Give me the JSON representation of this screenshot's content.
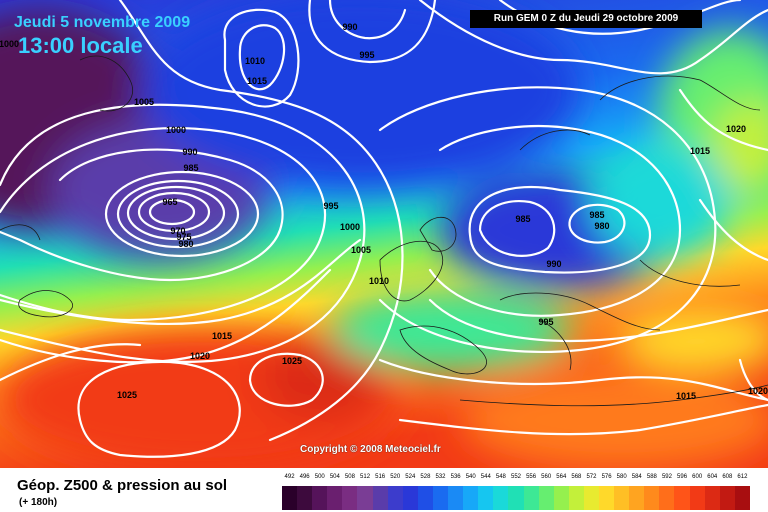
{
  "header": {
    "date": "Jeudi 5 novembre 2009",
    "time": "13:00 locale",
    "run": "Run GEM 0 Z du Jeudi 29 octobre 2009"
  },
  "map": {
    "copyright": "Copyright © 2008 Meteociel.fr",
    "pressure_labels": [
      "1000",
      "990",
      "995",
      "1010",
      "1015",
      "1005",
      "1000",
      "990",
      "985",
      "965",
      "970",
      "975",
      "980",
      "995",
      "1000",
      "1005",
      "1010",
      "985",
      "985",
      "980",
      "990",
      "995",
      "1020",
      "1015",
      "1015",
      "1020",
      "1025",
      "1025",
      "1015",
      "1020"
    ]
  },
  "footer": {
    "title": "Géop. Z500 & pression au sol",
    "subtitle": "(+ 180h)"
  },
  "scale": {
    "labels": [
      "492",
      "496",
      "500",
      "504",
      "508",
      "512",
      "516",
      "520",
      "524",
      "528",
      "532",
      "536",
      "540",
      "544",
      "548",
      "552",
      "556",
      "560",
      "564",
      "568",
      "572",
      "576",
      "580",
      "584",
      "588",
      "592",
      "596",
      "600",
      "604",
      "608",
      "612"
    ],
    "colors": [
      "#2a002a",
      "#3d0a3d",
      "#55135a",
      "#6a1f6f",
      "#7a2d82",
      "#7a3d95",
      "#5a3caa",
      "#3c3ccc",
      "#2a38d8",
      "#1f4fe6",
      "#1a6bf0",
      "#1a8af5",
      "#17a8f8",
      "#16c6f0",
      "#1ad9d9",
      "#20e0b5",
      "#3de895",
      "#66ee70",
      "#95f04e",
      "#c3f03a",
      "#e8ea30",
      "#ffd92a",
      "#ffbf25",
      "#ffa420",
      "#ff8a1c",
      "#ff6e1a",
      "#ff5418",
      "#f23a16",
      "#dc2a14",
      "#c21a12",
      "#a80e10"
    ]
  }
}
